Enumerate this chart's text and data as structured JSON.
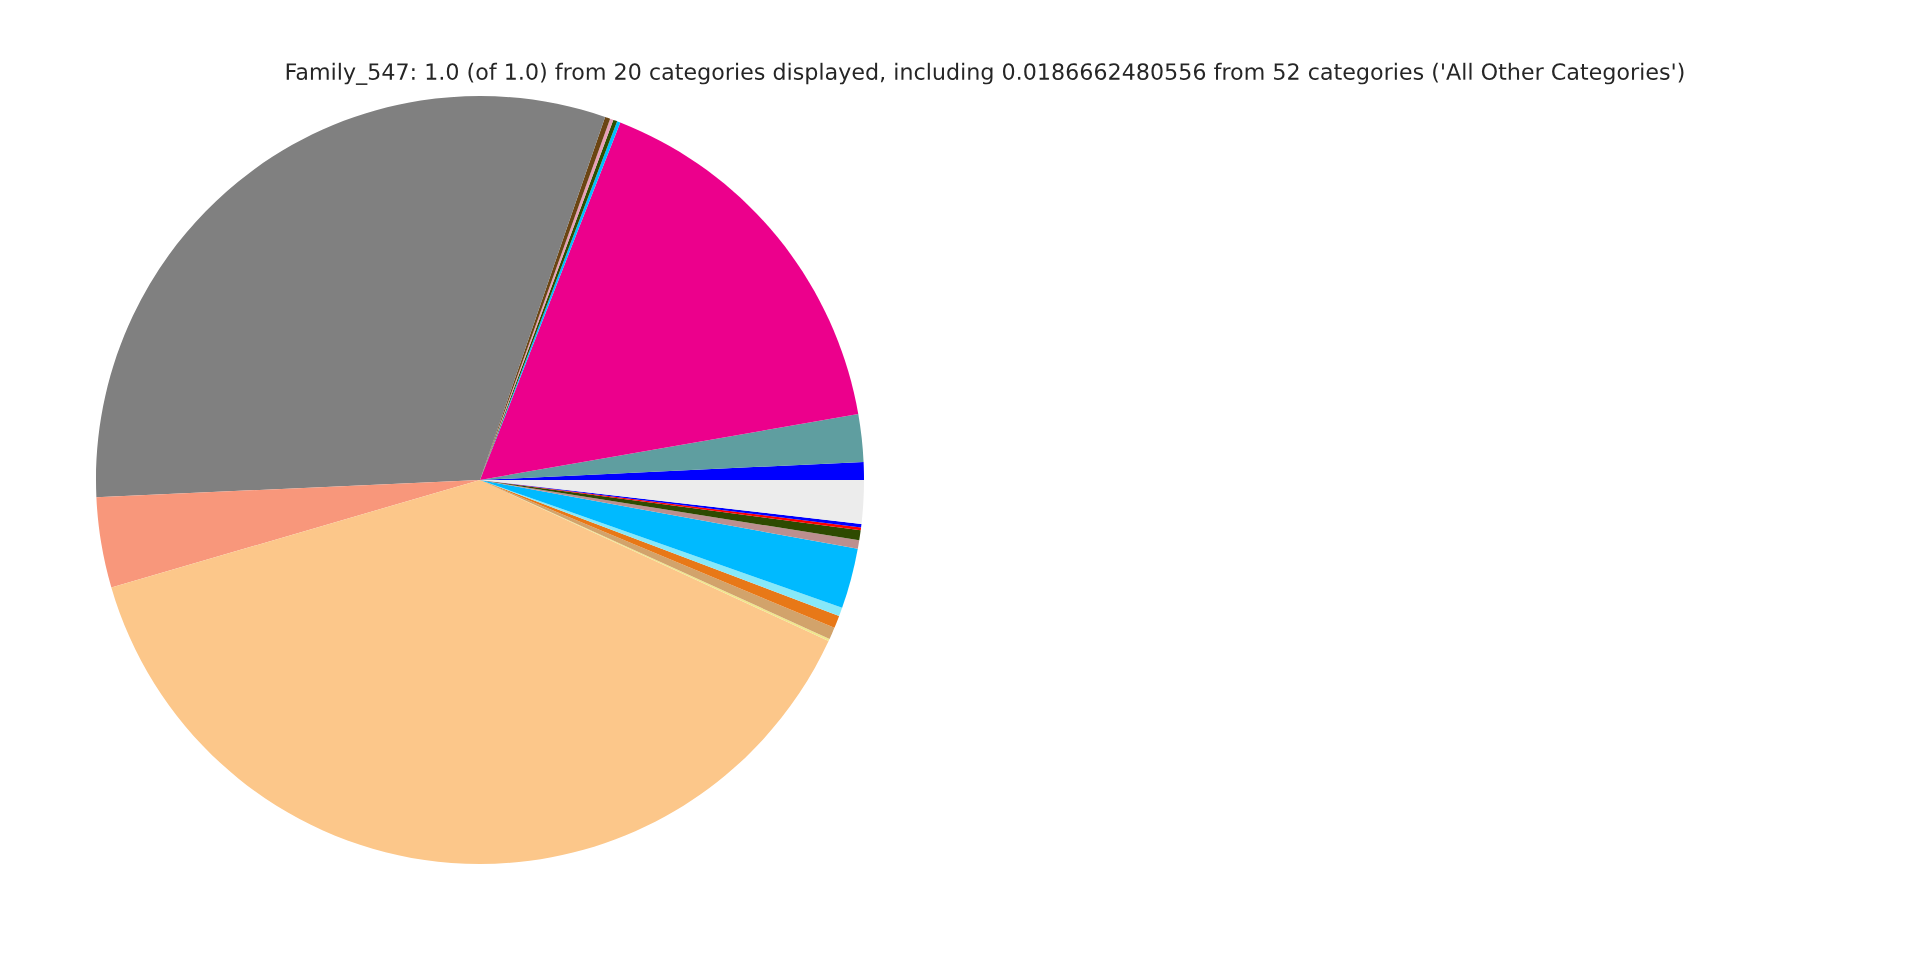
{
  "chart_data": {
    "type": "pie",
    "title": "Family_547: 1.0 (of 1.0) from 20 categories displayed, including 0.0186662480556 from 52 categories ('All Other Categories')",
    "categories": [
      null,
      null,
      null,
      null,
      null,
      null,
      null,
      null,
      null,
      null,
      null,
      null,
      null,
      null,
      null,
      null,
      null,
      null,
      null,
      null
    ],
    "values": [
      0.75,
      2.0,
      16.3,
      0.14,
      0.17,
      0.14,
      0.22,
      31.0,
      3.8,
      38.6,
      0.1,
      0.5,
      0.53,
      0.36,
      2.53,
      0.36,
      0.42,
      0.12,
      0.14,
      1.83
    ],
    "colors": [
      "#0000ff",
      "#5f9ea0",
      "#ec008c",
      "#00bfff",
      "#2e5000",
      "#e8a0b8",
      "#6b4513",
      "#808080",
      "#f8977b",
      "#fcc78a",
      "#f0e68c",
      "#d2a36b",
      "#e87817",
      "#87e8f8",
      "#00baff",
      "#bc8f8f",
      "#2e4a00",
      "#ff0000",
      "#0000ff",
      "#ececec"
    ],
    "legend": false
  }
}
